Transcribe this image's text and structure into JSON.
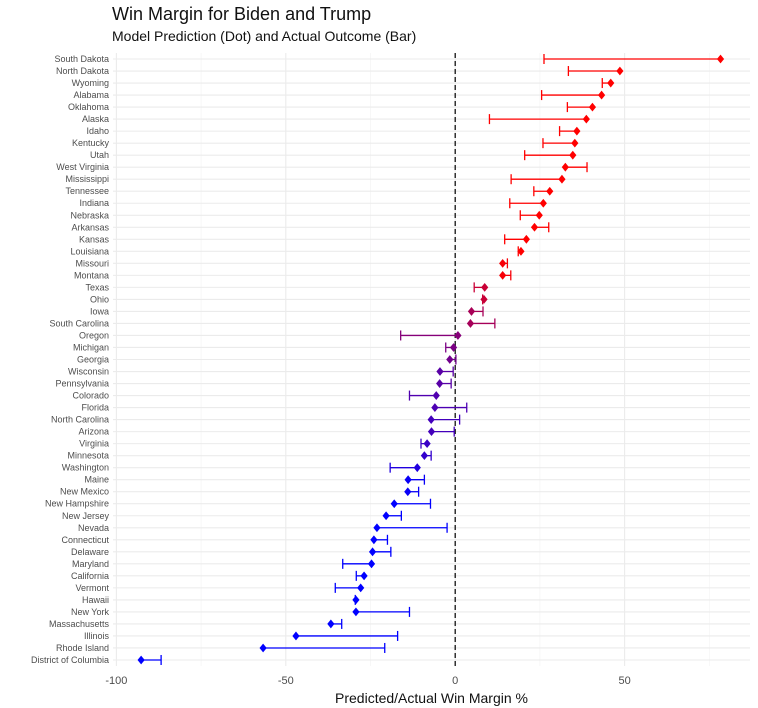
{
  "chart_data": {
    "type": "dumbbell",
    "title": "Win Margin for Biden and Trump",
    "subtitle": "Model Prediction (Dot) and Actual Outcome (Bar)",
    "xlabel": "Predicted/Actual Win Margin %",
    "ylabel": "",
    "xlim": [
      -101,
      87
    ],
    "xticks": [
      -100,
      -50,
      0,
      50
    ],
    "reference_line_x": 0,
    "grid": true,
    "legend": "none",
    "colors": {
      "trump": "#ff0000",
      "biden": "#0000ff"
    },
    "states": [
      {
        "name": "South Dakota",
        "predicted": 78.3,
        "actual": 26.2
      },
      {
        "name": "North Dakota",
        "predicted": 48.6,
        "actual": 33.4
      },
      {
        "name": "Wyoming",
        "predicted": 45.9,
        "actual": 43.4
      },
      {
        "name": "Alabama",
        "predicted": 43.2,
        "actual": 25.5
      },
      {
        "name": "Oklahoma",
        "predicted": 40.5,
        "actual": 33.1
      },
      {
        "name": "Alaska",
        "predicted": 38.7,
        "actual": 10.1
      },
      {
        "name": "Idaho",
        "predicted": 35.9,
        "actual": 30.8
      },
      {
        "name": "Kentucky",
        "predicted": 35.3,
        "actual": 25.9
      },
      {
        "name": "Utah",
        "predicted": 34.7,
        "actual": 20.5
      },
      {
        "name": "West Virginia",
        "predicted": 32.5,
        "actual": 38.9
      },
      {
        "name": "Mississippi",
        "predicted": 31.5,
        "actual": 16.5
      },
      {
        "name": "Tennessee",
        "predicted": 27.9,
        "actual": 23.2
      },
      {
        "name": "Indiana",
        "predicted": 26.0,
        "actual": 16.1
      },
      {
        "name": "Nebraska",
        "predicted": 24.8,
        "actual": 19.2
      },
      {
        "name": "Arkansas",
        "predicted": 23.4,
        "actual": 27.6
      },
      {
        "name": "Kansas",
        "predicted": 21.0,
        "actual": 14.6
      },
      {
        "name": "Louisiana",
        "predicted": 19.4,
        "actual": 18.6
      },
      {
        "name": "Missouri",
        "predicted": 14.0,
        "actual": 15.4
      },
      {
        "name": "Montana",
        "predicted": 14.0,
        "actual": 16.4
      },
      {
        "name": "Texas",
        "predicted": 8.7,
        "actual": 5.6
      },
      {
        "name": "Ohio",
        "predicted": 8.5,
        "actual": 8.1
      },
      {
        "name": "Iowa",
        "predicted": 4.8,
        "actual": 8.2
      },
      {
        "name": "South Carolina",
        "predicted": 4.5,
        "actual": 11.7
      },
      {
        "name": "Oregon",
        "predicted": 0.8,
        "actual": -16.1
      },
      {
        "name": "Michigan",
        "predicted": -0.5,
        "actual": -2.8
      },
      {
        "name": "Georgia",
        "predicted": -1.6,
        "actual": 0.2
      },
      {
        "name": "Wisconsin",
        "predicted": -4.5,
        "actual": -0.6
      },
      {
        "name": "Pennsylvania",
        "predicted": -4.6,
        "actual": -1.2
      },
      {
        "name": "Colorado",
        "predicted": -5.6,
        "actual": -13.5
      },
      {
        "name": "Florida",
        "predicted": -6.0,
        "actual": 3.4
      },
      {
        "name": "North Carolina",
        "predicted": -7.1,
        "actual": 1.3
      },
      {
        "name": "Arizona",
        "predicted": -7.0,
        "actual": -0.3
      },
      {
        "name": "Virginia",
        "predicted": -8.3,
        "actual": -10.1
      },
      {
        "name": "Minnesota",
        "predicted": -9.1,
        "actual": -7.1
      },
      {
        "name": "Washington",
        "predicted": -11.2,
        "actual": -19.2
      },
      {
        "name": "Maine",
        "predicted": -13.9,
        "actual": -9.1
      },
      {
        "name": "New Mexico",
        "predicted": -14.0,
        "actual": -10.8
      },
      {
        "name": "New Hampshire",
        "predicted": -18.0,
        "actual": -7.3
      },
      {
        "name": "New Jersey",
        "predicted": -20.4,
        "actual": -15.9
      },
      {
        "name": "Nevada",
        "predicted": -23.1,
        "actual": -2.4
      },
      {
        "name": "Connecticut",
        "predicted": -24.0,
        "actual": -20.0
      },
      {
        "name": "Delaware",
        "predicted": -24.4,
        "actual": -19.0
      },
      {
        "name": "Maryland",
        "predicted": -24.7,
        "actual": -33.2
      },
      {
        "name": "California",
        "predicted": -26.9,
        "actual": -29.2
      },
      {
        "name": "Vermont",
        "predicted": -27.9,
        "actual": -35.4
      },
      {
        "name": "Hawaii",
        "predicted": -29.3,
        "actual": -29.5
      },
      {
        "name": "New York",
        "predicted": -29.3,
        "actual": -13.5
      },
      {
        "name": "Massachusetts",
        "predicted": -36.7,
        "actual": -33.5
      },
      {
        "name": "Illinois",
        "predicted": -47.0,
        "actual": -17.0
      },
      {
        "name": "Rhode Island",
        "predicted": -56.7,
        "actual": -20.8
      },
      {
        "name": "District of Columbia",
        "predicted": -92.7,
        "actual": -86.8
      }
    ]
  }
}
